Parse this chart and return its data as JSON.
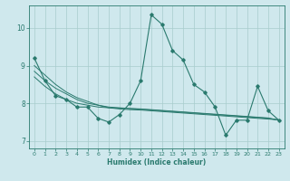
{
  "xlabel": "Humidex (Indice chaleur)",
  "xlim": [
    -0.5,
    23.5
  ],
  "ylim": [
    6.8,
    10.6
  ],
  "yticks": [
    7,
    8,
    9,
    10
  ],
  "xticks": [
    0,
    1,
    2,
    3,
    4,
    5,
    6,
    7,
    8,
    9,
    10,
    11,
    12,
    13,
    14,
    15,
    16,
    17,
    18,
    19,
    20,
    21,
    22,
    23
  ],
  "bg_color": "#cfe8ed",
  "grid_color": "#a8cccc",
  "line_color": "#2a7a6e",
  "series_main": [
    9.2,
    8.6,
    8.2,
    8.1,
    7.9,
    7.9,
    7.6,
    7.5,
    7.7,
    8.0,
    8.6,
    10.35,
    10.1,
    9.4,
    9.15,
    8.5,
    8.3,
    7.9,
    7.15,
    7.55,
    7.55,
    8.45,
    7.8,
    7.55
  ],
  "series_reg1": [
    9.0,
    8.75,
    8.5,
    8.3,
    8.15,
    8.05,
    7.95,
    7.88,
    7.85,
    7.83,
    7.82,
    7.8,
    7.78,
    7.76,
    7.74,
    7.72,
    7.7,
    7.68,
    7.66,
    7.64,
    7.62,
    7.6,
    7.58,
    7.56
  ],
  "series_reg2": [
    8.85,
    8.6,
    8.4,
    8.25,
    8.1,
    8.0,
    7.95,
    7.9,
    7.88,
    7.86,
    7.84,
    7.82,
    7.8,
    7.78,
    7.76,
    7.74,
    7.72,
    7.7,
    7.68,
    7.66,
    7.64,
    7.62,
    7.6,
    7.55
  ],
  "series_smooth": [
    8.7,
    8.45,
    8.25,
    8.1,
    8.0,
    7.95,
    7.9,
    7.88,
    7.87,
    7.86,
    7.85,
    7.83,
    7.81,
    7.79,
    7.77,
    7.75,
    7.73,
    7.71,
    7.69,
    7.67,
    7.65,
    7.63,
    7.61,
    7.55
  ]
}
